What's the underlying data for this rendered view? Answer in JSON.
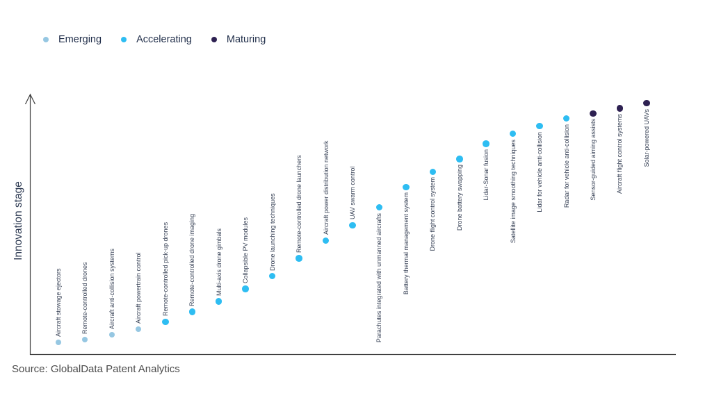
{
  "legend": {
    "position": "top-left",
    "items": [
      {
        "label": "Emerging",
        "color": "#96c7e2"
      },
      {
        "label": "Accelerating",
        "color": "#2ebdf2"
      },
      {
        "label": "Maturing",
        "color": "#2e2152"
      }
    ]
  },
  "chart_data": {
    "type": "scatter",
    "title": "",
    "ylabel": "Innovation stage",
    "xlabel": "",
    "ylim": [
      0,
      100
    ],
    "grid": false,
    "axis_color": "#3d3d3d",
    "legend_position": "top-left",
    "points": [
      {
        "label": "Aircraft stowage ejectors",
        "stage": "Emerging",
        "value": 5,
        "label_position": "above"
      },
      {
        "label": "Remote-controlled drones",
        "stage": "Emerging",
        "value": 6,
        "label_position": "above"
      },
      {
        "label": "Aircraft anti-collision systems",
        "stage": "Emerging",
        "value": 8,
        "label_position": "above"
      },
      {
        "label": "Aircraft powertrain control",
        "stage": "Emerging",
        "value": 10,
        "label_position": "above"
      },
      {
        "label": "Remote-controlled pick-up drones",
        "stage": "Accelerating",
        "value": 13,
        "label_position": "above"
      },
      {
        "label": "Remote-controlled drone imaging",
        "stage": "Accelerating",
        "value": 17,
        "label_position": "above"
      },
      {
        "label": "Multi-axis drone gimbals",
        "stage": "Accelerating",
        "value": 21,
        "label_position": "above"
      },
      {
        "label": "Collapsible PV modules",
        "stage": "Accelerating",
        "value": 26,
        "label_position": "above"
      },
      {
        "label": "Drone launching techniques",
        "stage": "Accelerating",
        "value": 31,
        "label_position": "above"
      },
      {
        "label": "Remote-controlled drone launchers",
        "stage": "Accelerating",
        "value": 38,
        "label_position": "above"
      },
      {
        "label": "Aircraft power distribution network",
        "stage": "Accelerating",
        "value": 45,
        "label_position": "above"
      },
      {
        "label": "UAV swarm control",
        "stage": "Accelerating",
        "value": 51,
        "label_position": "above"
      },
      {
        "label": "Parachutes integrated with unmanned aircrafts",
        "stage": "Accelerating",
        "value": 58,
        "label_position": "below"
      },
      {
        "label": "Battery thermal management system",
        "stage": "Accelerating",
        "value": 66,
        "label_position": "below"
      },
      {
        "label": "Drone flight control system",
        "stage": "Accelerating",
        "value": 72,
        "label_position": "below"
      },
      {
        "label": "Drone battery swapping",
        "stage": "Accelerating",
        "value": 77,
        "label_position": "below"
      },
      {
        "label": "Lidar-Sonar fusion",
        "stage": "Accelerating",
        "value": 83,
        "label_position": "below"
      },
      {
        "label": "Satellite image smoothing techniques",
        "stage": "Accelerating",
        "value": 87,
        "label_position": "below"
      },
      {
        "label": "Lidar for vehicle anti-collision",
        "stage": "Accelerating",
        "value": 90,
        "label_position": "below"
      },
      {
        "label": "Radar for vehicle anti-collision",
        "stage": "Accelerating",
        "value": 93,
        "label_position": "below"
      },
      {
        "label": "Sensor-guided aiming assists",
        "stage": "Maturing",
        "value": 95,
        "label_position": "below"
      },
      {
        "label": "Aircraft flight control systems",
        "stage": "Maturing",
        "value": 97,
        "label_position": "below"
      },
      {
        "label": "Solar-powered UAVs",
        "stage": "Maturing",
        "value": 99,
        "label_position": "below"
      }
    ]
  },
  "source": "Source: GlobalData Patent Analytics"
}
